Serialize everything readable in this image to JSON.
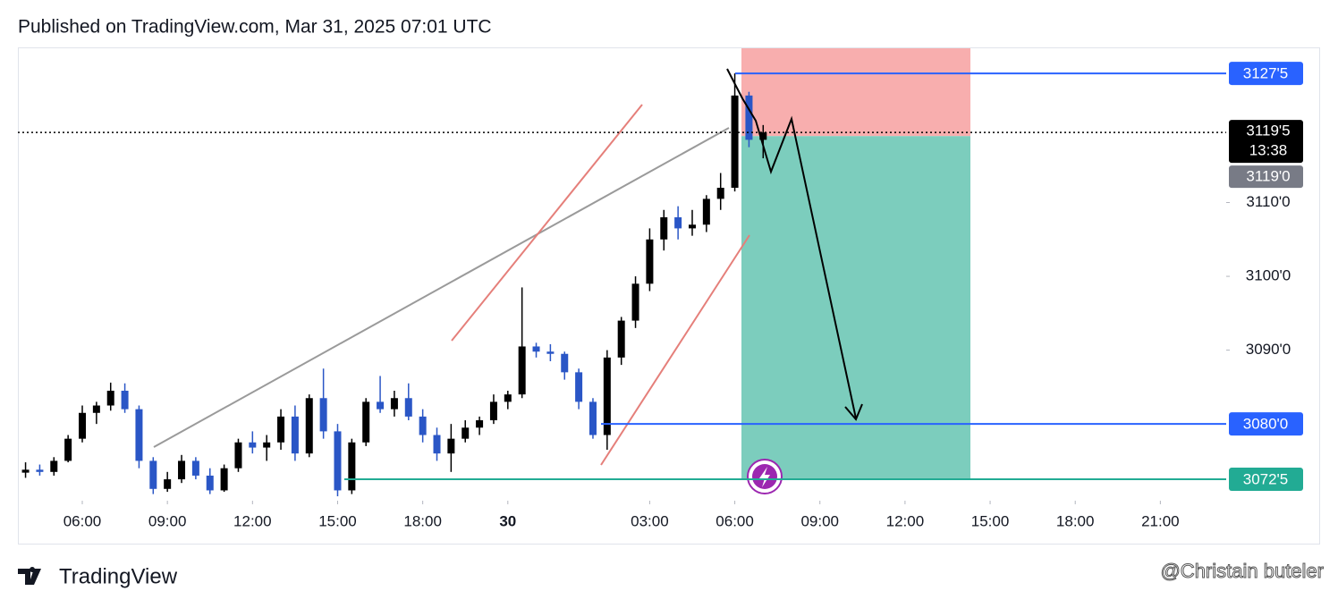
{
  "header": "Published on TradingView.com, Mar 31, 2025 07:01 UTC",
  "chart_data": {
    "type": "candlestick",
    "x": [
      4,
      4.5,
      5,
      5.5,
      6,
      6.5,
      7,
      7.5,
      8,
      8.5,
      9,
      9.5,
      10,
      10.5,
      11,
      11.5,
      12,
      12.5,
      13,
      13.5,
      14,
      14.5,
      15,
      15.5,
      16,
      16.5,
      17,
      17.5,
      18,
      18.5,
      19,
      19.5,
      20,
      20.5,
      21,
      21.5,
      22,
      22.5,
      23,
      23.5,
      24,
      24.5,
      25,
      25.5,
      26,
      26.5,
      27,
      27.5,
      28,
      28.5,
      29,
      29.5,
      30
    ],
    "open": [
      3073.4,
      3073.8,
      3073.5,
      3075.0,
      3078.0,
      3081.5,
      3082.5,
      3084.5,
      3082.0,
      3075.0,
      3071.2,
      3072.5,
      3075.0,
      3073.0,
      3071.0,
      3074.0,
      3077.5,
      3076.8,
      3077.5,
      3081.0,
      3076.0,
      3083.5,
      3079.0,
      3071.0,
      3077.5,
      3083.0,
      3082.0,
      3083.5,
      3081.0,
      3078.5,
      3076.0,
      3078.0,
      3079.5,
      3080.5,
      3083.0,
      3084.0,
      3090.5,
      3089.8,
      3089.5,
      3087.0,
      3083.0,
      3078.5,
      3089.0,
      3094.0,
      3099.0,
      3105.0,
      3108.0,
      3106.5,
      3107.0,
      3110.5,
      3112.0,
      3124.5,
      3118.5
    ],
    "high": [
      3074.8,
      3074.5,
      3075.5,
      3078.5,
      3082.5,
      3083.0,
      3085.6,
      3085.5,
      3082.5,
      3075.5,
      3073.5,
      3075.8,
      3075.5,
      3074.0,
      3074.5,
      3078.0,
      3079.0,
      3078.5,
      3082.0,
      3082.5,
      3084.0,
      3087.5,
      3080.0,
      3078.0,
      3083.5,
      3086.5,
      3084.5,
      3085.5,
      3082.0,
      3079.5,
      3080.0,
      3080.5,
      3081.0,
      3084.0,
      3084.5,
      3098.5,
      3091.0,
      3090.8,
      3089.8,
      3087.5,
      3083.5,
      3090.0,
      3094.5,
      3100.0,
      3106.5,
      3109.0,
      3109.5,
      3109.0,
      3111.0,
      3114.0,
      3127.5,
      3125.0,
      3120.5
    ],
    "low": [
      3072.7,
      3073.0,
      3073.0,
      3074.8,
      3077.5,
      3080.0,
      3081.8,
      3081.5,
      3074.0,
      3070.5,
      3070.8,
      3072.0,
      3072.5,
      3070.5,
      3070.8,
      3073.5,
      3076.0,
      3075.0,
      3076.5,
      3075.0,
      3075.5,
      3078.0,
      3070.2,
      3070.5,
      3077.0,
      3081.5,
      3081.0,
      3080.5,
      3077.5,
      3075.0,
      3073.5,
      3077.5,
      3078.5,
      3080.0,
      3082.0,
      3083.5,
      3089.0,
      3088.5,
      3086.0,
      3082.0,
      3078.0,
      3076.5,
      3088.0,
      3093.0,
      3098.0,
      3103.5,
      3105.0,
      3105.5,
      3106.0,
      3109.0,
      3111.5,
      3117.5,
      3116.0
    ],
    "close": [
      3073.8,
      3073.5,
      3075.0,
      3078.0,
      3081.5,
      3082.5,
      3084.5,
      3082.0,
      3075.0,
      3071.2,
      3072.5,
      3075.0,
      3073.0,
      3071.0,
      3074.0,
      3077.5,
      3076.8,
      3077.5,
      3081.0,
      3076.0,
      3083.5,
      3079.0,
      3071.0,
      3077.5,
      3083.0,
      3082.0,
      3083.5,
      3081.0,
      3078.5,
      3076.0,
      3078.0,
      3079.5,
      3080.5,
      3083.0,
      3084.0,
      3090.5,
      3089.8,
      3089.5,
      3087.0,
      3083.0,
      3078.5,
      3089.0,
      3094.0,
      3099.0,
      3105.0,
      3108.0,
      3106.5,
      3107.0,
      3110.5,
      3112.0,
      3124.5,
      3118.5,
      3119.5
    ],
    "up_color": "#000000",
    "down_color": "#2a56c6",
    "xlim": [
      3.73,
      49.6
    ],
    "xticks": [
      {
        "value": 6,
        "label": "06:00"
      },
      {
        "value": 9,
        "label": "09:00"
      },
      {
        "value": 12,
        "label": "12:00"
      },
      {
        "value": 15,
        "label": "15:00"
      },
      {
        "value": 18,
        "label": "18:00"
      },
      {
        "value": 21,
        "label": "30"
      },
      {
        "value": 26,
        "label": "03:00"
      },
      {
        "value": 29,
        "label": "06:00"
      },
      {
        "value": 32,
        "label": "09:00"
      },
      {
        "value": 35,
        "label": "12:00"
      },
      {
        "value": 38,
        "label": "15:00"
      },
      {
        "value": 41,
        "label": "18:00"
      },
      {
        "value": 44,
        "label": "21:00"
      }
    ],
    "ylim": [
      3069.6,
      3130.9
    ],
    "yticks": [
      {
        "value": 3110,
        "label": "3110'0"
      },
      {
        "value": 3100,
        "label": "3100'0"
      },
      {
        "value": 3090,
        "label": "3090'0"
      }
    ],
    "levels": [
      {
        "value": 3127.5,
        "label": "3127'5",
        "color": "#2962ff"
      },
      {
        "value": 3080,
        "label": "3080'0",
        "color": "#2962ff"
      },
      {
        "value": 3072.5,
        "label": "3072'5",
        "color": "#22ab94"
      }
    ],
    "last_price": {
      "value": 3119.5,
      "label": "3119'5",
      "countdown": "13:38"
    },
    "bid": {
      "value": 3119.0,
      "label": "3119'0"
    },
    "position": {
      "entry": 3119.0,
      "stop": 3131.0,
      "target": 3072.5,
      "stop_color": "#f8aeae",
      "target_color": "#7ccdbd"
    }
  },
  "footer": {
    "brand": "TradingView",
    "watermark": "@Christain buteler"
  }
}
